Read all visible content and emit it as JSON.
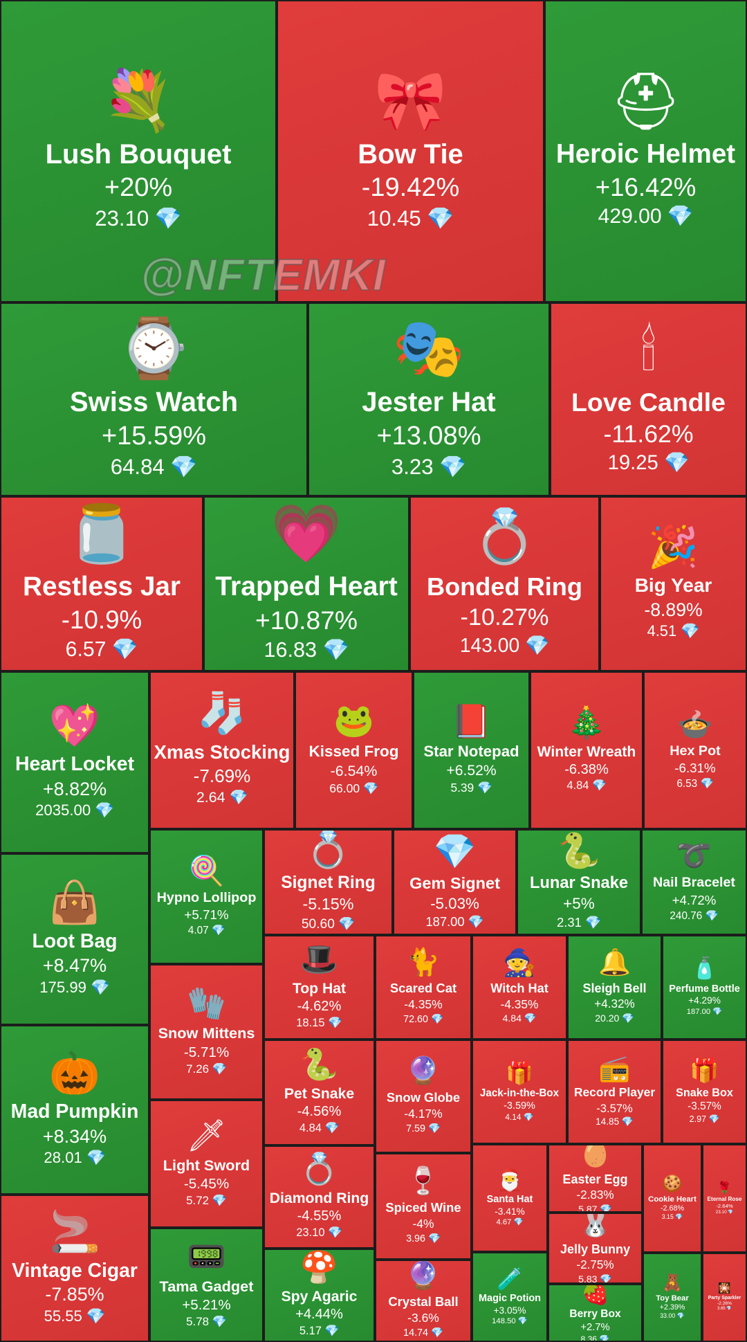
{
  "watermark": "@NFTEMKI",
  "colors": {
    "up": "#2c9435",
    "down": "#da3838",
    "gem": "#7fd6ff"
  },
  "chart_data": {
    "type": "treemap",
    "currency_icon": "diamond-icon",
    "items": [
      {
        "name": "Lush Bouquet",
        "change": "+20%",
        "price": "23.10",
        "icon": "💐"
      },
      {
        "name": "Bow Tie",
        "change": "-19.42%",
        "price": "10.45",
        "icon": "🎀"
      },
      {
        "name": "Heroic Helmet",
        "change": "+16.42%",
        "price": "429.00",
        "icon": "⛑"
      },
      {
        "name": "Swiss Watch",
        "change": "+15.59%",
        "price": "64.84",
        "icon": "⌚"
      },
      {
        "name": "Jester Hat",
        "change": "+13.08%",
        "price": "3.23",
        "icon": "🎭"
      },
      {
        "name": "Love Candle",
        "change": "-11.62%",
        "price": "19.25",
        "icon": "🕯"
      },
      {
        "name": "Restless Jar",
        "change": "-10.9%",
        "price": "6.57",
        "icon": "🫙"
      },
      {
        "name": "Trapped Heart",
        "change": "+10.87%",
        "price": "16.83",
        "icon": "💗"
      },
      {
        "name": "Bonded Ring",
        "change": "-10.27%",
        "price": "143.00",
        "icon": "💍"
      },
      {
        "name": "Big Year",
        "change": "-8.89%",
        "price": "4.51",
        "icon": "🎉"
      },
      {
        "name": "Heart Locket",
        "change": "+8.82%",
        "price": "2035.00",
        "icon": "💖"
      },
      {
        "name": "Xmas Stocking",
        "change": "-7.69%",
        "price": "2.64",
        "icon": "🧦"
      },
      {
        "name": "Kissed Frog",
        "change": "-6.54%",
        "price": "66.00",
        "icon": "🐸"
      },
      {
        "name": "Star Notepad",
        "change": "+6.52%",
        "price": "5.39",
        "icon": "📕"
      },
      {
        "name": "Winter Wreath",
        "change": "-6.38%",
        "price": "4.84",
        "icon": "🎄"
      },
      {
        "name": "Hex Pot",
        "change": "-6.31%",
        "price": "6.53",
        "icon": "🍲"
      },
      {
        "name": "Loot Bag",
        "change": "+8.47%",
        "price": "175.99",
        "icon": "👜"
      },
      {
        "name": "Hypno Lollipop",
        "change": "+5.71%",
        "price": "4.07",
        "icon": "🍭"
      },
      {
        "name": "Signet Ring",
        "change": "-5.15%",
        "price": "50.60",
        "icon": "💍"
      },
      {
        "name": "Gem Signet",
        "change": "-5.03%",
        "price": "187.00",
        "icon": "💎"
      },
      {
        "name": "Lunar Snake",
        "change": "+5%",
        "price": "2.31",
        "icon": "🐍"
      },
      {
        "name": "Nail Bracelet",
        "change": "+4.72%",
        "price": "240.76",
        "icon": "➰"
      },
      {
        "name": "Top Hat",
        "change": "-4.62%",
        "price": "18.15",
        "icon": "🎩"
      },
      {
        "name": "Scared Cat",
        "change": "-4.35%",
        "price": "72.60",
        "icon": "🐈"
      },
      {
        "name": "Witch Hat",
        "change": "-4.35%",
        "price": "4.84",
        "icon": "🧙"
      },
      {
        "name": "Sleigh Bell",
        "change": "+4.32%",
        "price": "20.20",
        "icon": "🔔"
      },
      {
        "name": "Perfume Bottle",
        "change": "+4.29%",
        "price": "187.00",
        "icon": "🧴"
      },
      {
        "name": "Mad Pumpkin",
        "change": "+8.34%",
        "price": "28.01",
        "icon": "🎃"
      },
      {
        "name": "Snow Mittens",
        "change": "-5.71%",
        "price": "7.26",
        "icon": "🧤"
      },
      {
        "name": "Pet Snake",
        "change": "-4.56%",
        "price": "4.84",
        "icon": "🐍"
      },
      {
        "name": "Snow Globe",
        "change": "-4.17%",
        "price": "7.59",
        "icon": "🔮"
      },
      {
        "name": "Jack-in-the-Box",
        "change": "-3.59%",
        "price": "4.14",
        "icon": "🎁"
      },
      {
        "name": "Record Player",
        "change": "-3.57%",
        "price": "14.85",
        "icon": "📻"
      },
      {
        "name": "Snake Box",
        "change": "-3.57%",
        "price": "2.97",
        "icon": "🎁"
      },
      {
        "name": "Light Sword",
        "change": "-5.45%",
        "price": "5.72",
        "icon": "🗡"
      },
      {
        "name": "Diamond Ring",
        "change": "-4.55%",
        "price": "23.10",
        "icon": "💍"
      },
      {
        "name": "Spiced Wine",
        "change": "-4%",
        "price": "3.96",
        "icon": "🍷"
      },
      {
        "name": "Santa Hat",
        "change": "-3.41%",
        "price": "4.67",
        "icon": "🎅"
      },
      {
        "name": "Easter Egg",
        "change": "-2.83%",
        "price": "5.87",
        "icon": "🥚"
      },
      {
        "name": "Jelly Bunny",
        "change": "-2.75%",
        "price": "5.83",
        "icon": "🐰"
      },
      {
        "name": "Cookie Heart",
        "change": "-2.68%",
        "price": "3.15",
        "icon": "🍪"
      },
      {
        "name": "Eternal Rose",
        "change": "-2.64%",
        "price": "23.10",
        "icon": "🌹"
      },
      {
        "name": "Vintage Cigar",
        "change": "-7.85%",
        "price": "55.55",
        "icon": "🚬"
      },
      {
        "name": "Tama Gadget",
        "change": "+5.21%",
        "price": "5.78",
        "icon": "📟"
      },
      {
        "name": "Spy Agaric",
        "change": "+4.44%",
        "price": "5.17",
        "icon": "🍄"
      },
      {
        "name": "Crystal Ball",
        "change": "-3.6%",
        "price": "14.74",
        "icon": "🔮"
      },
      {
        "name": "Magic Potion",
        "change": "+3.05%",
        "price": "148.50",
        "icon": "🧪"
      },
      {
        "name": "Berry Box",
        "change": "+2.7%",
        "price": "8.36",
        "icon": "🍓"
      },
      {
        "name": "Toy Bear",
        "change": "+2.39%",
        "price": "33.00",
        "icon": "🧸"
      },
      {
        "name": "Party Sparkler",
        "change": "-2.26%",
        "price": "3.65",
        "icon": "🎇"
      }
    ]
  }
}
